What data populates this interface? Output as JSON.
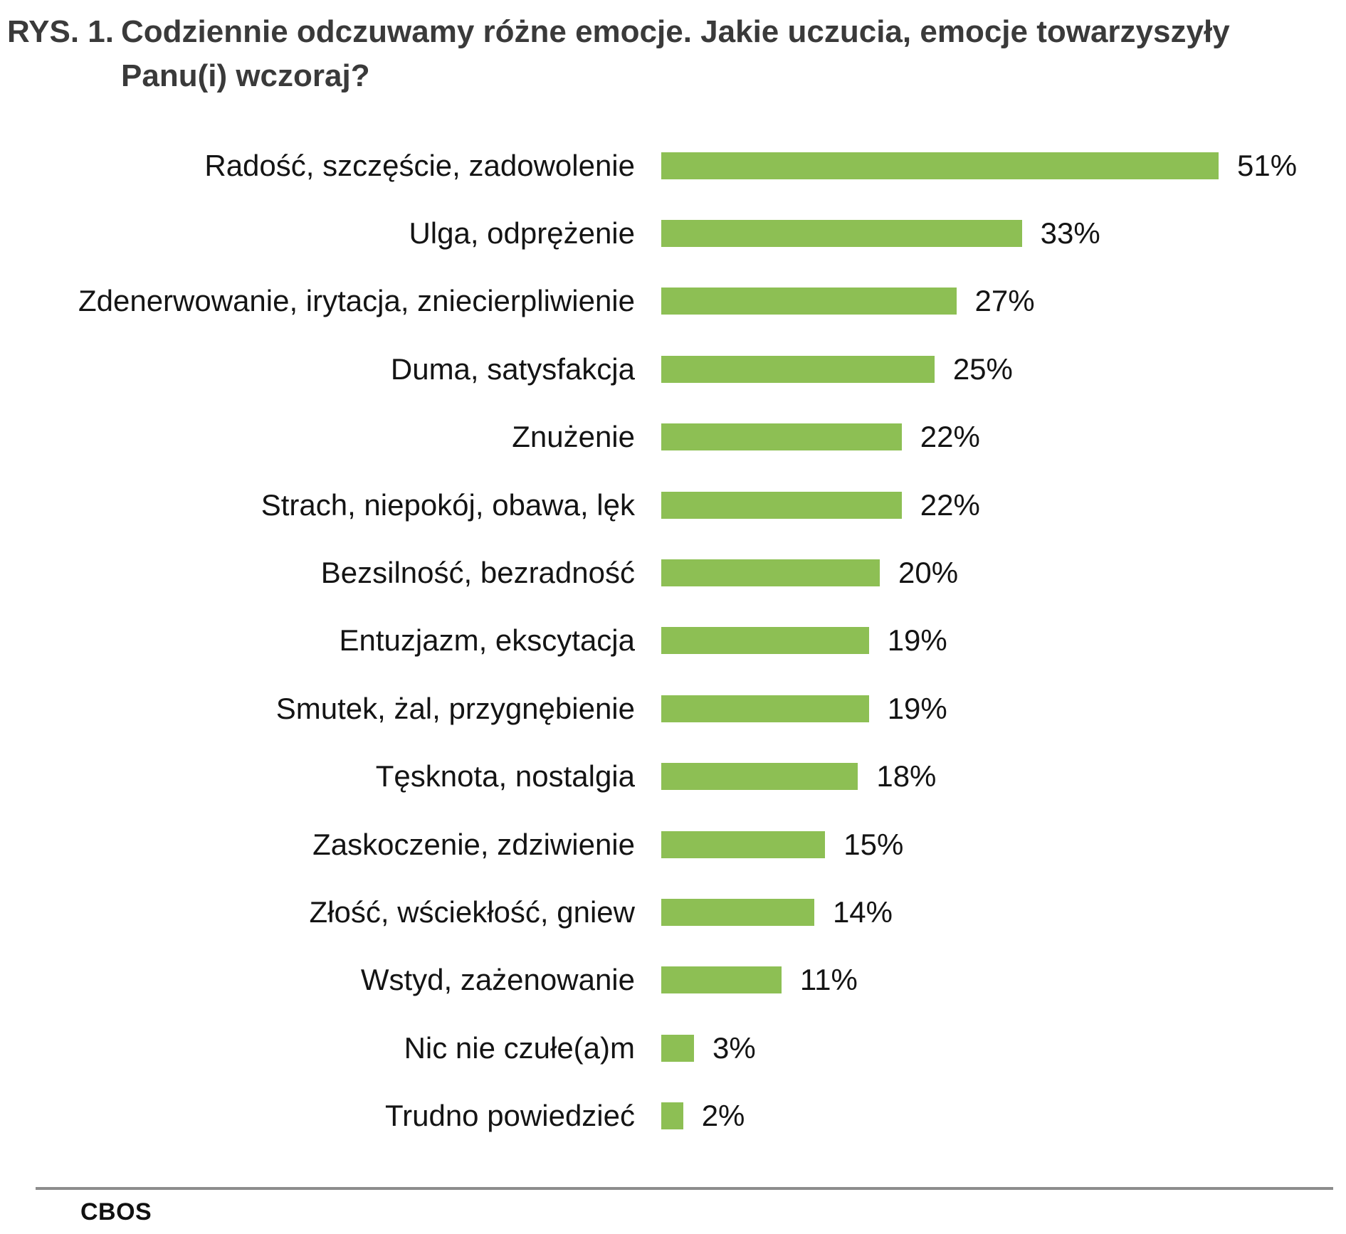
{
  "title": {
    "prefix": "RYS. 1.",
    "lines": [
      "Codziennie odczuwamy różne emocje. Jakie uczucia, emocje towarzyszyły",
      "Panu(i) wczoraj?"
    ]
  },
  "footer": {
    "brand": "CBOS"
  },
  "colors": {
    "bar": "#8DBF54",
    "title_text": "#3A3A3A",
    "label_text": "#141414",
    "footer_line": "#8C8C8C"
  },
  "chart_data": {
    "type": "bar",
    "orientation": "horizontal",
    "unit": "%",
    "xlim": [
      0,
      51
    ],
    "grid": false,
    "legend": "none",
    "title": "RYS. 1. Codziennie odczuwamy różne emocje. Jakie uczucia, emocje towarzyszyły Panu(i) wczoraj?",
    "categories": [
      "Radość, szczęście, zadowolenie",
      "Ulga, odprężenie",
      "Zdenerwowanie, irytacja, zniecierpliwienie",
      "Duma, satysfakcja",
      "Znużenie",
      "Strach, niepokój, obawa, lęk",
      "Bezsilność, bezradność",
      "Entuzjazm, ekscytacja",
      "Smutek, żal, przygnębienie",
      "Tęsknota, nostalgia",
      "Zaskoczenie, zdziwienie",
      "Złość, wściekłość, gniew",
      "Wstyd, zażenowanie",
      "Nic nie czułe(a)m",
      "Trudno powiedzieć"
    ],
    "values": [
      51,
      33,
      27,
      25,
      22,
      22,
      20,
      19,
      19,
      18,
      15,
      14,
      11,
      3,
      2
    ],
    "value_labels": [
      "51%",
      "33%",
      "27%",
      "25%",
      "22%",
      "22%",
      "20%",
      "19%",
      "19%",
      "18%",
      "15%",
      "14%",
      "11%",
      "3%",
      "2%"
    ]
  }
}
